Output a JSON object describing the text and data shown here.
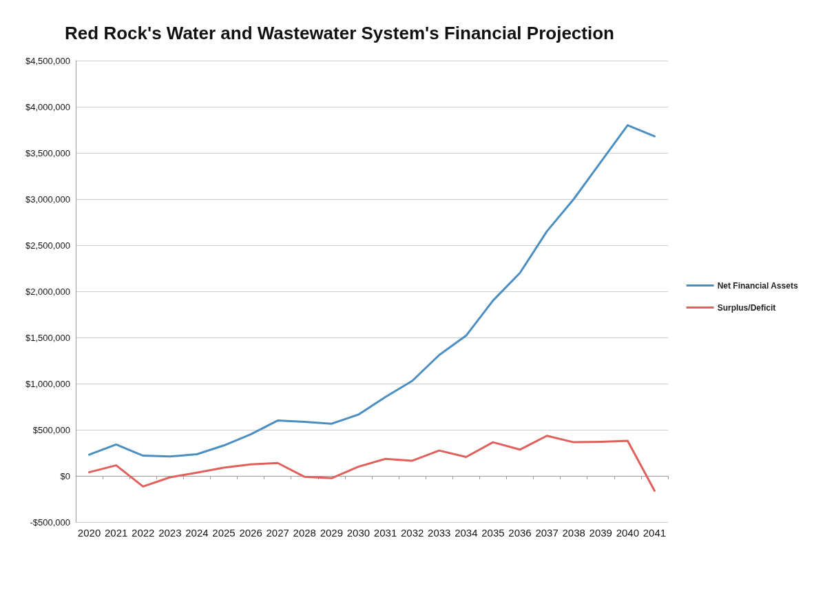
{
  "chart_data": {
    "type": "line",
    "title": "Red Rock's Water and Wastewater System's Financial Projection",
    "categories": [
      "2020",
      "2021",
      "2022",
      "2023",
      "2024",
      "2025",
      "2026",
      "2027",
      "2028",
      "2029",
      "2030",
      "2031",
      "2032",
      "2033",
      "2034",
      "2035",
      "2036",
      "2037",
      "2038",
      "2039",
      "2040",
      "2041"
    ],
    "series": [
      {
        "name": "Net Financial Assets",
        "color": "#4a8ec2",
        "values": [
          230000,
          340000,
          220000,
          210000,
          235000,
          330000,
          450000,
          600000,
          585000,
          565000,
          665000,
          855000,
          1030000,
          1310000,
          1520000,
          1900000,
          2200000,
          2650000,
          3000000,
          3400000,
          3800000,
          3680000
        ]
      },
      {
        "name": "Surplus/Deficit",
        "color": "#e0605c",
        "values": [
          40000,
          115000,
          -115000,
          -15000,
          35000,
          90000,
          125000,
          140000,
          -10000,
          -25000,
          100000,
          185000,
          165000,
          275000,
          205000,
          365000,
          285000,
          435000,
          365000,
          370000,
          380000,
          -160000
        ]
      }
    ],
    "ylim": [
      -500000,
      4500000
    ],
    "yticks": [
      {
        "value": -500000,
        "label": "-$500,000"
      },
      {
        "value": 0,
        "label": "$0"
      },
      {
        "value": 500000,
        "label": "$500,000"
      },
      {
        "value": 1000000,
        "label": "$1,000,000"
      },
      {
        "value": 1500000,
        "label": "$1,500,000"
      },
      {
        "value": 2000000,
        "label": "$2,000,000"
      },
      {
        "value": 2500000,
        "label": "$2,500,000"
      },
      {
        "value": 3000000,
        "label": "$3,000,000"
      },
      {
        "value": 3500000,
        "label": "$3,500,000"
      },
      {
        "value": 4000000,
        "label": "$4,000,000"
      },
      {
        "value": 4500000,
        "label": "$4,500,000"
      }
    ],
    "grid": "y",
    "legend": "right",
    "marker": "none",
    "line_style": "solid"
  }
}
